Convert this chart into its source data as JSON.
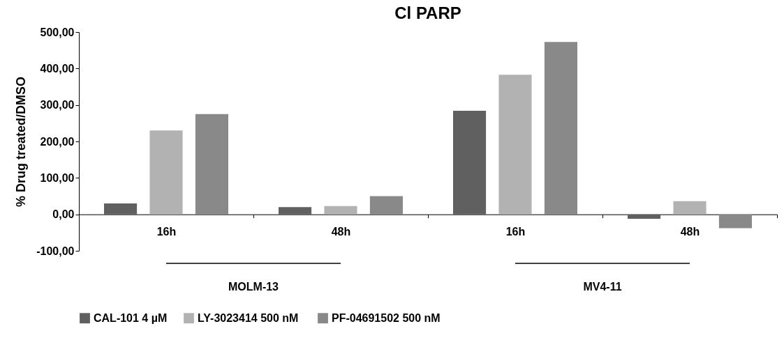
{
  "chart_data": {
    "type": "bar",
    "title": "Cl PARP",
    "ylabel": "%  Drug treated/DMSO",
    "categories": [
      "16h",
      "48h",
      "16h",
      "48h"
    ],
    "series": [
      {
        "name": "CAL-101 4 µM",
        "color": "#606060",
        "values": [
          30,
          20,
          284,
          -12
        ]
      },
      {
        "name": "LY-3023414  500 nM",
        "color": "#b2b2b2",
        "values": [
          230,
          23,
          383,
          36
        ]
      },
      {
        "name": "PF-04691502 500 nM",
        "color": "#898989",
        "values": [
          275,
          50,
          473,
          -38
        ]
      }
    ],
    "ylim": [
      -100,
      500
    ],
    "yticks": [
      {
        "value": -100,
        "label": "-100,00"
      },
      {
        "value": 0,
        "label": "0,00"
      },
      {
        "value": 100,
        "label": "100,00"
      },
      {
        "value": 200,
        "label": "200,00"
      },
      {
        "value": 300,
        "label": "300,00"
      },
      {
        "value": 400,
        "label": "400,00"
      },
      {
        "value": 500,
        "label": "500,00"
      }
    ],
    "annotations": [
      "MOLM-13",
      "MV4-11"
    ],
    "grid": false,
    "legend": "bottom"
  }
}
